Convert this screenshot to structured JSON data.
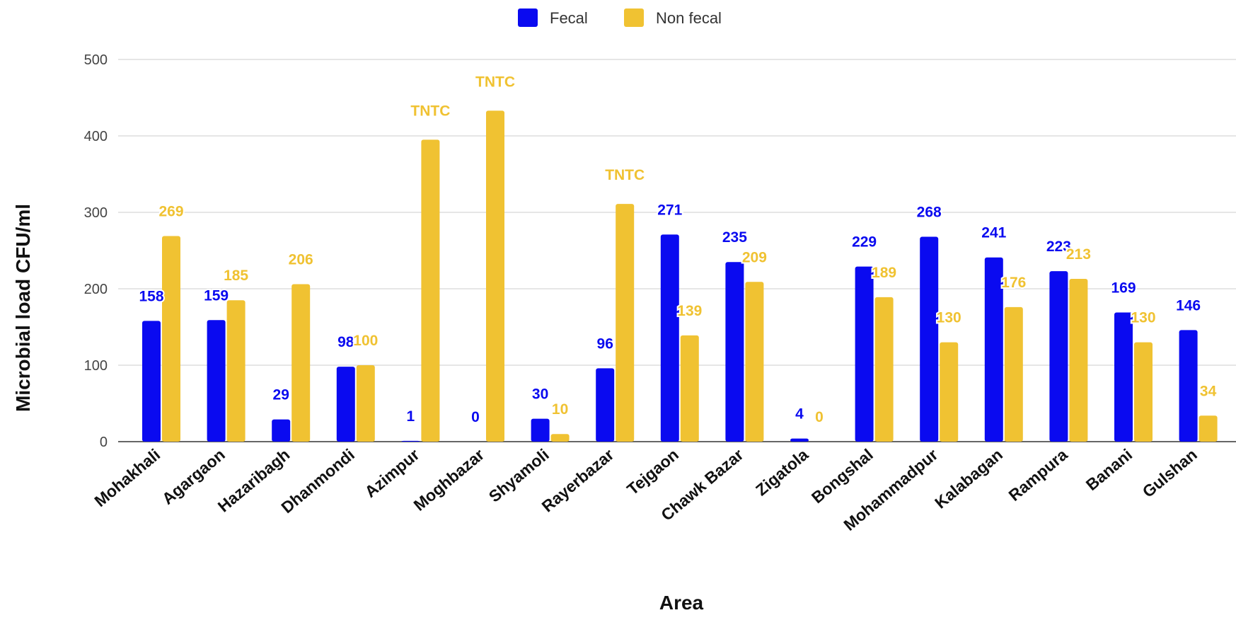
{
  "chart_data": {
    "type": "bar",
    "xlabel": "Area",
    "ylabel": "Microbial load CFU/ml",
    "ylim": [
      0,
      500
    ],
    "yticks": [
      0,
      100,
      200,
      300,
      400,
      500
    ],
    "grid": true,
    "legend_position": "top",
    "categories": [
      "Mohakhali",
      "Agargaon",
      "Hazaribagh",
      "Dhanmondi",
      "Azimpur",
      "Moghbazar",
      "Shyamoli",
      "Rayerbazar",
      "Tejgaon",
      "Chawk Bazar",
      "Zigatola",
      "Bongshal",
      "Mohammadpur",
      "Kalabagan",
      "Rampura",
      "Banani",
      "Gulshan"
    ],
    "series": [
      {
        "name": "Fecal",
        "color": "#0a0af0",
        "values": [
          158,
          159,
          29,
          98,
          1,
          0,
          30,
          96,
          271,
          235,
          4,
          229,
          268,
          241,
          223,
          169,
          146
        ],
        "labels": [
          "158",
          "159",
          "29",
          "98",
          "1",
          "0",
          "30",
          "96",
          "271",
          "235",
          "4",
          "229",
          "268",
          "241",
          "223",
          "169",
          "146"
        ]
      },
      {
        "name": "Non fecal",
        "color": "#f0c232",
        "values": [
          269,
          185,
          206,
          100,
          395,
          433,
          10,
          311,
          139,
          209,
          0,
          189,
          130,
          176,
          213,
          130,
          34
        ],
        "labels": [
          "269",
          "185",
          "206",
          "100",
          "TNTC",
          "TNTC",
          "10",
          "TNTC",
          "139",
          "209",
          "0",
          "189",
          "130",
          "176",
          "213",
          "130",
          "34"
        ]
      }
    ]
  }
}
